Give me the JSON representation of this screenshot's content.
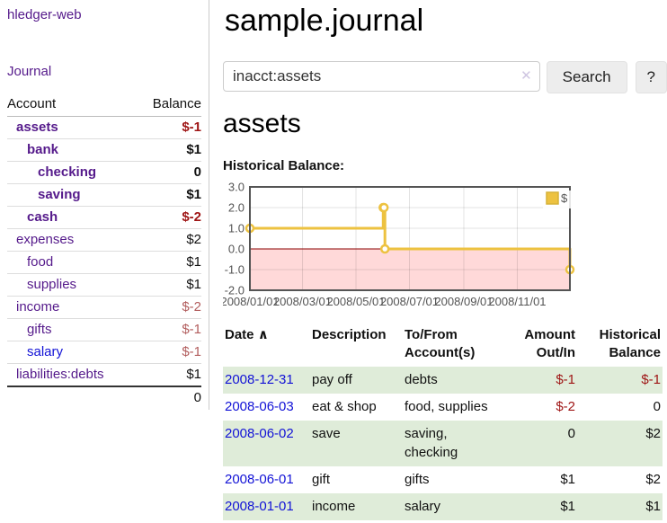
{
  "brand": "hledger-web",
  "colors": {
    "purple": "#551a8b",
    "blue": "#1212d6",
    "neg": "#9e1414",
    "negsoft": "#b25d5d",
    "stripe": "#dfecd9",
    "gold": "#edc240",
    "pink": "#ffd9d9",
    "zeroline": "#8b0000",
    "chartborder": "#545454"
  },
  "sidebar": {
    "journal_label": "Journal",
    "accounts": {
      "headers": {
        "account": "Account",
        "balance": "Balance"
      },
      "rows": [
        {
          "name": "assets",
          "balance": "$-1",
          "depth": 1,
          "bold": true,
          "neg": "strong"
        },
        {
          "name": "bank",
          "balance": "$1",
          "depth": 2,
          "bold": true,
          "neg": "none"
        },
        {
          "name": "checking",
          "balance": "0",
          "depth": 3,
          "bold": true,
          "neg": "none"
        },
        {
          "name": "saving",
          "balance": "$1",
          "depth": 3,
          "bold": true,
          "neg": "none"
        },
        {
          "name": "cash",
          "balance": "$-2",
          "depth": 2,
          "bold": true,
          "neg": "strong"
        },
        {
          "name": "expenses",
          "balance": "$2",
          "depth": 1,
          "bold": false,
          "neg": "none"
        },
        {
          "name": "food",
          "balance": "$1",
          "depth": 2,
          "bold": false,
          "neg": "none"
        },
        {
          "name": "supplies",
          "balance": "$1",
          "depth": 2,
          "bold": false,
          "neg": "none"
        },
        {
          "name": "income",
          "balance": "$-2",
          "depth": 1,
          "bold": false,
          "neg": "soft"
        },
        {
          "name": "gifts",
          "balance": "$-1",
          "depth": 2,
          "bold": false,
          "neg": "soft"
        },
        {
          "name": "salary",
          "balance": "$-1",
          "depth": 2,
          "bold": false,
          "neg": "soft",
          "link": "blue"
        },
        {
          "name": "liabilities:debts",
          "balance": "$1",
          "depth": 1,
          "bold": false,
          "neg": "none"
        }
      ],
      "total": "0"
    }
  },
  "header": {
    "title": "sample.journal"
  },
  "search": {
    "query": "inacct:assets",
    "clear_icon": "✕",
    "search_label": "Search",
    "help_label": "?"
  },
  "account_view": {
    "heading": "assets",
    "chart_title": "Historical Balance:"
  },
  "chart_data": {
    "type": "line",
    "step": true,
    "title": "Historical Balance of assets",
    "series": [
      {
        "name": "$",
        "color": "#edc240",
        "points": [
          {
            "x": "2008-01-01",
            "y": 1
          },
          {
            "x": "2008-06-01",
            "y": 2
          },
          {
            "x": "2008-06-02",
            "y": 2
          },
          {
            "x": "2008-06-03",
            "y": 0
          },
          {
            "x": "2008-12-31",
            "y": -1
          }
        ]
      }
    ],
    "xrange": [
      "2008-01-01",
      "2008-12-31"
    ],
    "ylim": [
      -2,
      3
    ],
    "yticks": [
      3,
      2,
      1,
      0,
      -1,
      -2
    ],
    "ytick_labels": [
      "3.0",
      "2.0",
      "1.0",
      "0.0",
      "-1.0",
      "-2.0"
    ],
    "xticks": [
      "2008-01-01",
      "2008-03-01",
      "2008-05-01",
      "2008-07-01",
      "2008-09-01",
      "2008-11-01"
    ],
    "xtick_labels": [
      "2008/01/01",
      "2008/03/01",
      "2008/05/01",
      "2008/07/01",
      "2008/09/01",
      "2008/11/01"
    ],
    "legend": {
      "label": "$",
      "position": "top-right"
    },
    "negative_region_shaded": true,
    "grid": true
  },
  "register": {
    "headers": [
      {
        "label": "Date",
        "sort_icon": "∧"
      },
      {
        "label": "Description"
      },
      {
        "label": "To/From Account(s)"
      },
      {
        "label": "Amount Out/In",
        "align": "right"
      },
      {
        "label": "Historical Balance",
        "align": "right"
      }
    ],
    "rows": [
      {
        "date": "2008-12-31",
        "description": "pay off",
        "accounts": "debts",
        "amount": "$-1",
        "balance": "$-1",
        "amount_neg": true,
        "balance_neg": true
      },
      {
        "date": "2008-06-03",
        "description": "eat & shop",
        "accounts": "food, supplies",
        "amount": "$-2",
        "balance": "0",
        "amount_neg": true,
        "balance_neg": false
      },
      {
        "date": "2008-06-02",
        "description": "save",
        "accounts": "saving, checking",
        "amount": "0",
        "balance": "$2",
        "amount_neg": false,
        "balance_neg": false
      },
      {
        "date": "2008-06-01",
        "description": "gift",
        "accounts": "gifts",
        "amount": "$1",
        "balance": "$2",
        "amount_neg": false,
        "balance_neg": false
      },
      {
        "date": "2008-01-01",
        "description": "income",
        "accounts": "salary",
        "amount": "$1",
        "balance": "$1",
        "amount_neg": false,
        "balance_neg": false
      }
    ]
  }
}
